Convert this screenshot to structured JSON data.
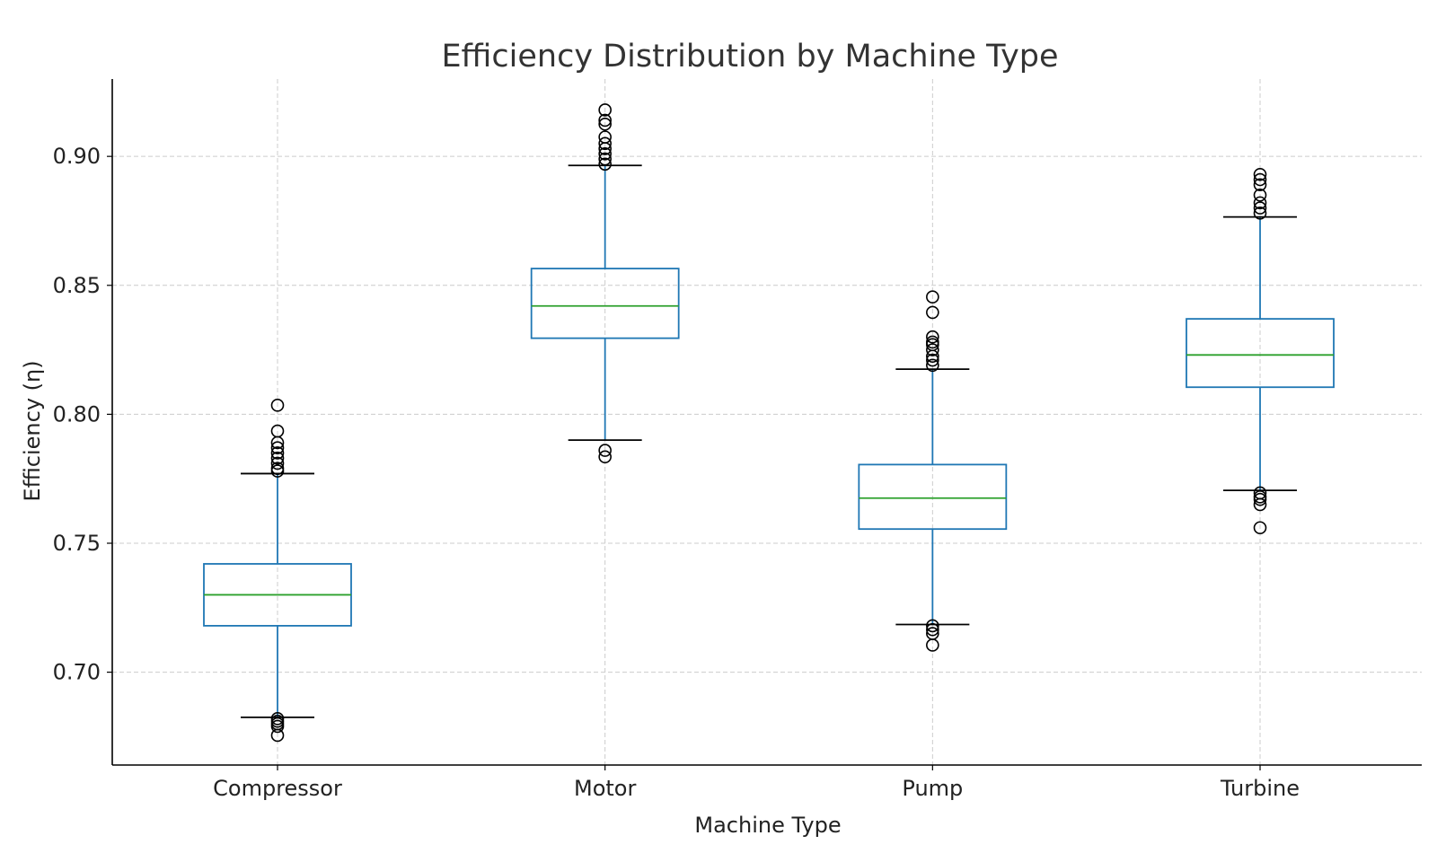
{
  "chart_data": {
    "type": "box",
    "title": "Efficiency Distribution by Machine Type",
    "xlabel": "Machine Type",
    "ylabel": "Efficiency (η)",
    "ylim": [
      0.664,
      0.93
    ],
    "yticks": [
      0.7,
      0.75,
      0.8,
      0.85,
      0.9
    ],
    "ytick_labels": [
      "0.70",
      "0.75",
      "0.80",
      "0.85",
      "0.90"
    ],
    "grid": true,
    "colors": {
      "box": "#1f77b4",
      "median": "#2ca02c",
      "cap": "#000000",
      "flier": "#000000",
      "grid": "#cccccc"
    },
    "categories": [
      "Compressor",
      "Motor",
      "Pump",
      "Turbine"
    ],
    "boxes": [
      {
        "name": "Compressor",
        "whislo": 0.6825,
        "q1": 0.718,
        "med": 0.73,
        "q3": 0.742,
        "whishi": 0.777,
        "fliers": [
          0.6755,
          0.679,
          0.68,
          0.681,
          0.682,
          0.778,
          0.779,
          0.781,
          0.783,
          0.785,
          0.787,
          0.789,
          0.7935,
          0.8035
        ]
      },
      {
        "name": "Motor",
        "whislo": 0.79,
        "q1": 0.8295,
        "med": 0.842,
        "q3": 0.8565,
        "whishi": 0.8965,
        "fliers": [
          0.7835,
          0.786,
          0.897,
          0.899,
          0.901,
          0.903,
          0.905,
          0.9075,
          0.9125,
          0.914,
          0.918
        ]
      },
      {
        "name": "Pump",
        "whislo": 0.7185,
        "q1": 0.7555,
        "med": 0.7675,
        "q3": 0.7805,
        "whishi": 0.8175,
        "fliers": [
          0.7105,
          0.715,
          0.7165,
          0.718,
          0.819,
          0.821,
          0.8225,
          0.825,
          0.827,
          0.828,
          0.83,
          0.8395,
          0.8455
        ]
      },
      {
        "name": "Turbine",
        "whislo": 0.7705,
        "q1": 0.8105,
        "med": 0.823,
        "q3": 0.837,
        "whishi": 0.8765,
        "fliers": [
          0.756,
          0.765,
          0.767,
          0.768,
          0.7695,
          0.878,
          0.88,
          0.882,
          0.885,
          0.889,
          0.891,
          0.893
        ]
      }
    ]
  }
}
